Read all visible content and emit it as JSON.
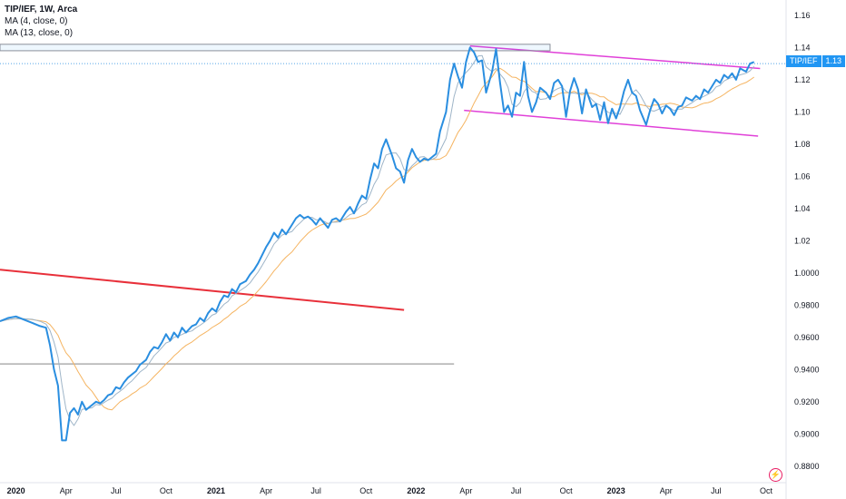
{
  "legend": {
    "symbol_line": "TIP/IEF, 1W, Arca",
    "ma4": "MA (4, close, 0)",
    "ma13": "MA (13, close, 0)"
  },
  "price_tag": {
    "symbol": "TIP/IEF",
    "value": "1.13"
  },
  "colors": {
    "price": "#2a8ee0",
    "ma4": "#9fb5c8",
    "ma13": "#f5b461",
    "channel": "#e040d8",
    "trendline": "#e8303a",
    "hline": "#9e9e9e",
    "tag": "#2196f3",
    "flash": "#e91e63"
  },
  "icons": {
    "flash": "lightning-icon"
  },
  "chart_data": {
    "type": "line",
    "title": "",
    "xlabel": "",
    "ylabel": "",
    "ylim": [
      0.872,
      1.165
    ],
    "xlim": [
      2019.92,
      2023.85
    ],
    "grid": false,
    "legend_position": "top-left",
    "y_ticks": [
      "1.16",
      "1.14",
      "1.12",
      "1.10",
      "1.08",
      "1.06",
      "1.04",
      "1.02",
      "1.0000",
      "0.9800",
      "0.9600",
      "0.9400",
      "0.9200",
      "0.9000",
      "0.8800"
    ],
    "x_ticks": [
      {
        "label": "2020",
        "x": 2020.0,
        "year": true
      },
      {
        "label": "Apr",
        "x": 2020.25
      },
      {
        "label": "Jul",
        "x": 2020.5
      },
      {
        "label": "Oct",
        "x": 2020.75
      },
      {
        "label": "2021",
        "x": 2021.0,
        "year": true
      },
      {
        "label": "Apr",
        "x": 2021.25
      },
      {
        "label": "Jul",
        "x": 2021.5
      },
      {
        "label": "Oct",
        "x": 2021.75
      },
      {
        "label": "2022",
        "x": 2022.0,
        "year": true
      },
      {
        "label": "Apr",
        "x": 2022.25
      },
      {
        "label": "Jul",
        "x": 2022.5
      },
      {
        "label": "Oct",
        "x": 2022.75
      },
      {
        "label": "2023",
        "x": 2023.0,
        "year": true
      },
      {
        "label": "Apr",
        "x": 2023.25
      },
      {
        "label": "Jul",
        "x": 2023.5
      },
      {
        "label": "Oct",
        "x": 2023.75
      }
    ],
    "series": [
      {
        "name": "TIP/IEF",
        "values": [
          [
            2019.92,
            0.97
          ],
          [
            2019.96,
            0.972
          ],
          [
            2020.0,
            0.973
          ],
          [
            2020.04,
            0.971
          ],
          [
            2020.08,
            0.969
          ],
          [
            2020.12,
            0.967
          ],
          [
            2020.15,
            0.966
          ],
          [
            2020.17,
            0.955
          ],
          [
            2020.19,
            0.94
          ],
          [
            2020.21,
            0.93
          ],
          [
            2020.23,
            0.896
          ],
          [
            2020.25,
            0.896
          ],
          [
            2020.27,
            0.913
          ],
          [
            2020.29,
            0.916
          ],
          [
            2020.31,
            0.912
          ],
          [
            2020.33,
            0.92
          ],
          [
            2020.35,
            0.915
          ],
          [
            2020.38,
            0.918
          ],
          [
            2020.4,
            0.92
          ],
          [
            2020.42,
            0.919
          ],
          [
            2020.44,
            0.921
          ],
          [
            2020.46,
            0.924
          ],
          [
            2020.48,
            0.925
          ],
          [
            2020.5,
            0.929
          ],
          [
            2020.52,
            0.928
          ],
          [
            2020.54,
            0.932
          ],
          [
            2020.56,
            0.935
          ],
          [
            2020.58,
            0.937
          ],
          [
            2020.6,
            0.939
          ],
          [
            2020.62,
            0.943
          ],
          [
            2020.65,
            0.946
          ],
          [
            2020.67,
            0.951
          ],
          [
            2020.69,
            0.954
          ],
          [
            2020.71,
            0.953
          ],
          [
            2020.73,
            0.957
          ],
          [
            2020.75,
            0.962
          ],
          [
            2020.77,
            0.958
          ],
          [
            2020.79,
            0.963
          ],
          [
            2020.81,
            0.96
          ],
          [
            2020.83,
            0.966
          ],
          [
            2020.85,
            0.963
          ],
          [
            2020.88,
            0.967
          ],
          [
            2020.9,
            0.968
          ],
          [
            2020.92,
            0.972
          ],
          [
            2020.94,
            0.97
          ],
          [
            2020.96,
            0.975
          ],
          [
            2020.98,
            0.978
          ],
          [
            2021.0,
            0.976
          ],
          [
            2021.02,
            0.982
          ],
          [
            2021.04,
            0.986
          ],
          [
            2021.06,
            0.985
          ],
          [
            2021.08,
            0.99
          ],
          [
            2021.1,
            0.988
          ],
          [
            2021.12,
            0.993
          ],
          [
            2021.15,
            0.995
          ],
          [
            2021.17,
            0.999
          ],
          [
            2021.19,
            1.002
          ],
          [
            2021.21,
            1.006
          ],
          [
            2021.23,
            1.011
          ],
          [
            2021.25,
            1.016
          ],
          [
            2021.27,
            1.02
          ],
          [
            2021.29,
            1.025
          ],
          [
            2021.31,
            1.022
          ],
          [
            2021.33,
            1.027
          ],
          [
            2021.35,
            1.024
          ],
          [
            2021.38,
            1.03
          ],
          [
            2021.4,
            1.034
          ],
          [
            2021.42,
            1.036
          ],
          [
            2021.44,
            1.034
          ],
          [
            2021.46,
            1.035
          ],
          [
            2021.48,
            1.033
          ],
          [
            2021.5,
            1.03
          ],
          [
            2021.52,
            1.034
          ],
          [
            2021.54,
            1.031
          ],
          [
            2021.56,
            1.028
          ],
          [
            2021.58,
            1.033
          ],
          [
            2021.6,
            1.034
          ],
          [
            2021.62,
            1.032
          ],
          [
            2021.65,
            1.038
          ],
          [
            2021.67,
            1.041
          ],
          [
            2021.69,
            1.037
          ],
          [
            2021.71,
            1.043
          ],
          [
            2021.73,
            1.048
          ],
          [
            2021.75,
            1.046
          ],
          [
            2021.77,
            1.058
          ],
          [
            2021.79,
            1.068
          ],
          [
            2021.81,
            1.065
          ],
          [
            2021.83,
            1.077
          ],
          [
            2021.85,
            1.083
          ],
          [
            2021.88,
            1.073
          ],
          [
            2021.9,
            1.065
          ],
          [
            2021.92,
            1.063
          ],
          [
            2021.94,
            1.056
          ],
          [
            2021.96,
            1.07
          ],
          [
            2021.98,
            1.077
          ],
          [
            2022.0,
            1.072
          ],
          [
            2022.02,
            1.069
          ],
          [
            2022.04,
            1.071
          ],
          [
            2022.06,
            1.07
          ],
          [
            2022.08,
            1.072
          ],
          [
            2022.1,
            1.074
          ],
          [
            2022.12,
            1.088
          ],
          [
            2022.15,
            1.1
          ],
          [
            2022.17,
            1.12
          ],
          [
            2022.19,
            1.13
          ],
          [
            2022.21,
            1.122
          ],
          [
            2022.23,
            1.115
          ],
          [
            2022.25,
            1.131
          ],
          [
            2022.27,
            1.14
          ],
          [
            2022.29,
            1.137
          ],
          [
            2022.31,
            1.131
          ],
          [
            2022.33,
            1.132
          ],
          [
            2022.35,
            1.112
          ],
          [
            2022.38,
            1.125
          ],
          [
            2022.4,
            1.139
          ],
          [
            2022.42,
            1.118
          ],
          [
            2022.44,
            1.1
          ],
          [
            2022.46,
            1.104
          ],
          [
            2022.48,
            1.097
          ],
          [
            2022.5,
            1.112
          ],
          [
            2022.52,
            1.11
          ],
          [
            2022.54,
            1.131
          ],
          [
            2022.56,
            1.11
          ],
          [
            2022.58,
            1.1
          ],
          [
            2022.6,
            1.106
          ],
          [
            2022.62,
            1.115
          ],
          [
            2022.65,
            1.112
          ],
          [
            2022.67,
            1.108
          ],
          [
            2022.69,
            1.118
          ],
          [
            2022.71,
            1.12
          ],
          [
            2022.73,
            1.116
          ],
          [
            2022.75,
            1.097
          ],
          [
            2022.77,
            1.113
          ],
          [
            2022.79,
            1.121
          ],
          [
            2022.81,
            1.114
          ],
          [
            2022.83,
            1.099
          ],
          [
            2022.85,
            1.114
          ],
          [
            2022.88,
            1.103
          ],
          [
            2022.9,
            1.105
          ],
          [
            2022.92,
            1.095
          ],
          [
            2022.94,
            1.106
          ],
          [
            2022.96,
            1.093
          ],
          [
            2022.98,
            1.102
          ],
          [
            2023.0,
            1.096
          ],
          [
            2023.02,
            1.103
          ],
          [
            2023.04,
            1.113
          ],
          [
            2023.06,
            1.12
          ],
          [
            2023.08,
            1.112
          ],
          [
            2023.1,
            1.11
          ],
          [
            2023.12,
            1.101
          ],
          [
            2023.15,
            1.092
          ],
          [
            2023.17,
            1.101
          ],
          [
            2023.19,
            1.108
          ],
          [
            2023.21,
            1.105
          ],
          [
            2023.23,
            1.099
          ],
          [
            2023.25,
            1.104
          ],
          [
            2023.27,
            1.102
          ],
          [
            2023.29,
            1.098
          ],
          [
            2023.31,
            1.103
          ],
          [
            2023.33,
            1.104
          ],
          [
            2023.35,
            1.109
          ],
          [
            2023.38,
            1.107
          ],
          [
            2023.4,
            1.11
          ],
          [
            2023.42,
            1.108
          ],
          [
            2023.44,
            1.114
          ],
          [
            2023.46,
            1.112
          ],
          [
            2023.48,
            1.116
          ],
          [
            2023.5,
            1.12
          ],
          [
            2023.52,
            1.118
          ],
          [
            2023.54,
            1.123
          ],
          [
            2023.56,
            1.121
          ],
          [
            2023.58,
            1.124
          ],
          [
            2023.6,
            1.12
          ],
          [
            2023.62,
            1.127
          ],
          [
            2023.65,
            1.125
          ],
          [
            2023.67,
            1.13
          ],
          [
            2023.69,
            1.131
          ]
        ]
      },
      {
        "name": "MA (4, close, 0)",
        "smoothing": 4
      },
      {
        "name": "MA (13, close, 0)",
        "smoothing": 13
      }
    ],
    "annotations": [
      {
        "type": "trendline",
        "role": "channel-upper",
        "from": [
          2022.27,
          1.141
        ],
        "to": [
          2023.72,
          1.127
        ]
      },
      {
        "type": "trendline",
        "role": "channel-lower",
        "from": [
          2022.24,
          1.101
        ],
        "to": [
          2023.71,
          1.085
        ]
      },
      {
        "type": "trendline",
        "role": "long-red",
        "from": [
          2019.92,
          1.002
        ],
        "to": [
          2021.94,
          0.977
        ]
      },
      {
        "type": "hline",
        "y": 0.9435,
        "from": 2019.92,
        "to": 2022.19
      },
      {
        "type": "hline-dotted",
        "y": 1.13
      },
      {
        "type": "rectangle",
        "from": [
          2019.92,
          1.142
        ],
        "to": [
          2022.67,
          1.138
        ]
      }
    ]
  }
}
